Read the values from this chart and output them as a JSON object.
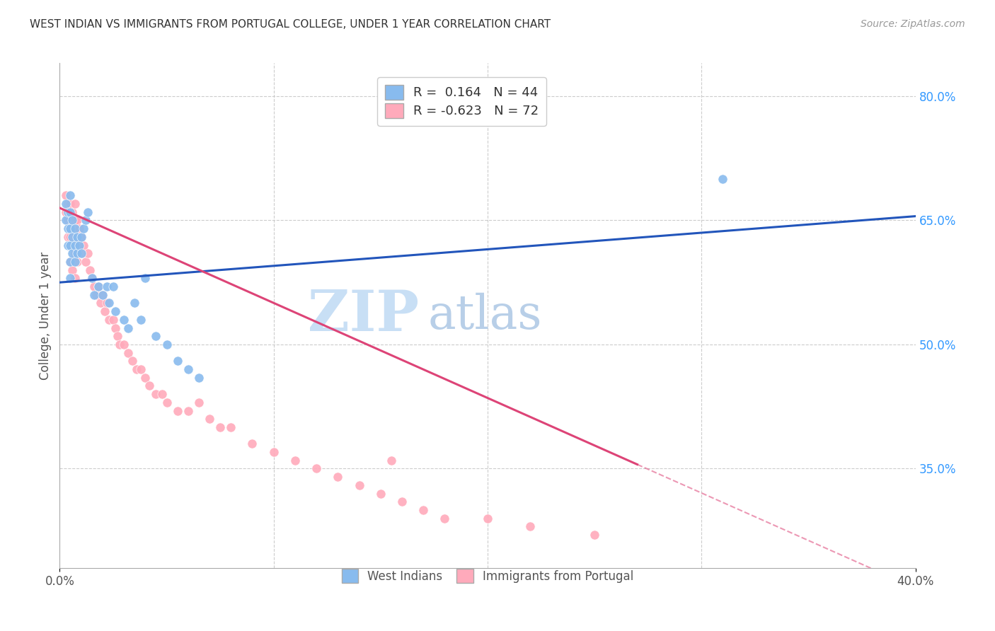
{
  "title": "WEST INDIAN VS IMMIGRANTS FROM PORTUGAL COLLEGE, UNDER 1 YEAR CORRELATION CHART",
  "source_text": "Source: ZipAtlas.com",
  "ylabel_left": "College, Under 1 year",
  "x_label_bottom_left": "0.0%",
  "x_label_bottom_right": "40.0%",
  "right_ytick_labels": [
    "80.0%",
    "65.0%",
    "50.0%",
    "35.0%"
  ],
  "right_ytick_values": [
    0.8,
    0.65,
    0.5,
    0.35
  ],
  "legend_label_1": "West Indians",
  "legend_label_2": "Immigrants from Portugal",
  "title_color": "#333333",
  "source_color": "#999999",
  "grid_color": "#cccccc",
  "watermark_zip_color": "#c8dff5",
  "watermark_atlas_color": "#b8cfe8",
  "blue_line_color": "#2255bb",
  "pink_line_color": "#dd4477",
  "blue_dot_color": "#88bbee",
  "pink_dot_color": "#ffaabb",
  "blue_R": 0.164,
  "blue_N": 44,
  "pink_R": -0.623,
  "pink_N": 72,
  "xlim": [
    0.0,
    0.4
  ],
  "ylim": [
    0.23,
    0.84
  ],
  "blue_scatter_x": [
    0.003,
    0.003,
    0.004,
    0.004,
    0.004,
    0.005,
    0.005,
    0.005,
    0.005,
    0.005,
    0.005,
    0.006,
    0.006,
    0.006,
    0.007,
    0.007,
    0.007,
    0.008,
    0.008,
    0.009,
    0.01,
    0.01,
    0.011,
    0.012,
    0.013,
    0.015,
    0.016,
    0.018,
    0.02,
    0.022,
    0.023,
    0.025,
    0.026,
    0.03,
    0.032,
    0.035,
    0.038,
    0.04,
    0.045,
    0.05,
    0.055,
    0.06,
    0.065,
    0.31
  ],
  "blue_scatter_y": [
    0.65,
    0.67,
    0.66,
    0.64,
    0.62,
    0.68,
    0.66,
    0.64,
    0.62,
    0.6,
    0.58,
    0.65,
    0.63,
    0.61,
    0.64,
    0.62,
    0.6,
    0.63,
    0.61,
    0.62,
    0.63,
    0.61,
    0.64,
    0.65,
    0.66,
    0.58,
    0.56,
    0.57,
    0.56,
    0.57,
    0.55,
    0.57,
    0.54,
    0.53,
    0.52,
    0.55,
    0.53,
    0.58,
    0.51,
    0.5,
    0.48,
    0.47,
    0.46,
    0.7
  ],
  "pink_scatter_x": [
    0.003,
    0.003,
    0.004,
    0.004,
    0.004,
    0.005,
    0.005,
    0.005,
    0.005,
    0.006,
    0.006,
    0.006,
    0.006,
    0.007,
    0.007,
    0.007,
    0.007,
    0.007,
    0.008,
    0.008,
    0.008,
    0.009,
    0.009,
    0.01,
    0.01,
    0.011,
    0.012,
    0.013,
    0.014,
    0.015,
    0.016,
    0.017,
    0.018,
    0.019,
    0.02,
    0.021,
    0.022,
    0.023,
    0.025,
    0.026,
    0.027,
    0.028,
    0.03,
    0.032,
    0.034,
    0.036,
    0.038,
    0.04,
    0.042,
    0.045,
    0.048,
    0.05,
    0.055,
    0.06,
    0.065,
    0.07,
    0.075,
    0.08,
    0.09,
    0.1,
    0.11,
    0.12,
    0.13,
    0.14,
    0.15,
    0.155,
    0.16,
    0.17,
    0.18,
    0.2,
    0.22,
    0.25
  ],
  "pink_scatter_y": [
    0.68,
    0.66,
    0.67,
    0.65,
    0.63,
    0.67,
    0.65,
    0.63,
    0.6,
    0.66,
    0.64,
    0.62,
    0.59,
    0.67,
    0.65,
    0.63,
    0.61,
    0.58,
    0.65,
    0.63,
    0.6,
    0.64,
    0.62,
    0.63,
    0.61,
    0.62,
    0.6,
    0.61,
    0.59,
    0.58,
    0.57,
    0.56,
    0.57,
    0.55,
    0.56,
    0.54,
    0.55,
    0.53,
    0.53,
    0.52,
    0.51,
    0.5,
    0.5,
    0.49,
    0.48,
    0.47,
    0.47,
    0.46,
    0.45,
    0.44,
    0.44,
    0.43,
    0.42,
    0.42,
    0.43,
    0.41,
    0.4,
    0.4,
    0.38,
    0.37,
    0.36,
    0.35,
    0.34,
    0.33,
    0.32,
    0.36,
    0.31,
    0.3,
    0.29,
    0.29,
    0.28,
    0.27
  ]
}
